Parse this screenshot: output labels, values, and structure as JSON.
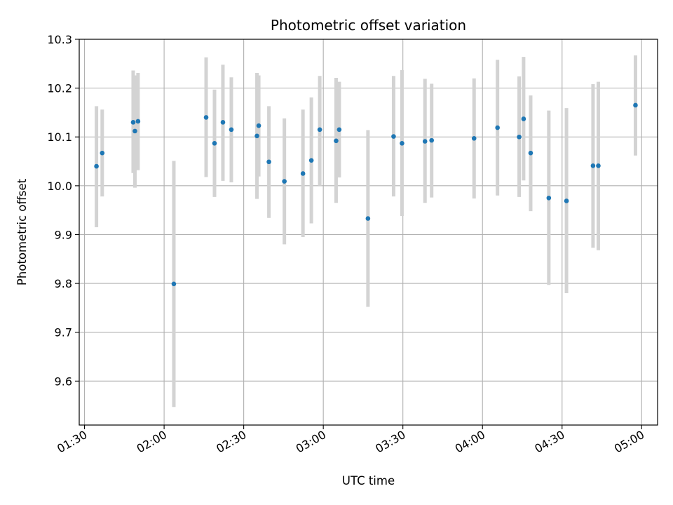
{
  "chart_data": {
    "type": "scatter",
    "title": "Photometric offset variation",
    "xlabel": "UTC time",
    "ylabel": "Photometric offset",
    "x_unit": "UTC HH:MM",
    "xlim": [
      "01:28",
      "05:06"
    ],
    "ylim": [
      9.51,
      10.3
    ],
    "x_ticks": [
      "01:30",
      "02:00",
      "02:30",
      "03:00",
      "03:30",
      "04:00",
      "04:30",
      "05:00"
    ],
    "y_ticks": [
      9.6,
      9.7,
      9.8,
      9.9,
      10.0,
      10.1,
      10.2,
      10.3
    ],
    "y_tick_labels": [
      "9.6",
      "9.7",
      "9.8",
      "9.9",
      "10.0",
      "10.1",
      "10.2",
      "10.3"
    ],
    "x_tick_rotation_deg": 30,
    "grid": true,
    "legend": "none",
    "colors": {
      "point": "#1f77b4",
      "errorbar": "#d3d3d3",
      "grid": "#b0b0b0"
    },
    "points": [
      {
        "x": "01:34:30",
        "y": 10.04,
        "yerr_low": 9.915,
        "yerr_high": 10.163
      },
      {
        "x": "01:36:40",
        "y": 10.067,
        "yerr_low": 9.978,
        "yerr_high": 10.156
      },
      {
        "x": "01:48:20",
        "y": 10.13,
        "yerr_low": 10.026,
        "yerr_high": 10.236
      },
      {
        "x": "01:49:00",
        "y": 10.112,
        "yerr_low": 9.996,
        "yerr_high": 10.226
      },
      {
        "x": "01:50:10",
        "y": 10.132,
        "yerr_low": 10.032,
        "yerr_high": 10.231
      },
      {
        "x": "02:03:40",
        "y": 9.799,
        "yerr_low": 9.547,
        "yerr_high": 10.051
      },
      {
        "x": "02:15:50",
        "y": 10.14,
        "yerr_low": 10.018,
        "yerr_high": 10.263
      },
      {
        "x": "02:19:00",
        "y": 10.087,
        "yerr_low": 9.977,
        "yerr_high": 10.197
      },
      {
        "x": "02:22:10",
        "y": 10.13,
        "yerr_low": 10.01,
        "yerr_high": 10.248
      },
      {
        "x": "02:25:20",
        "y": 10.115,
        "yerr_low": 10.007,
        "yerr_high": 10.222
      },
      {
        "x": "02:35:00",
        "y": 10.102,
        "yerr_low": 9.973,
        "yerr_high": 10.231
      },
      {
        "x": "02:35:40",
        "y": 10.123,
        "yerr_low": 10.019,
        "yerr_high": 10.226
      },
      {
        "x": "02:39:30",
        "y": 10.049,
        "yerr_low": 9.934,
        "yerr_high": 10.163
      },
      {
        "x": "02:45:20",
        "y": 10.009,
        "yerr_low": 9.88,
        "yerr_high": 10.138
      },
      {
        "x": "02:52:20",
        "y": 10.025,
        "yerr_low": 9.895,
        "yerr_high": 10.156
      },
      {
        "x": "02:55:30",
        "y": 10.052,
        "yerr_low": 9.923,
        "yerr_high": 10.181
      },
      {
        "x": "02:58:40",
        "y": 10.115,
        "yerr_low": 10.0,
        "yerr_high": 10.225
      },
      {
        "x": "03:04:50",
        "y": 10.092,
        "yerr_low": 9.965,
        "yerr_high": 10.221
      },
      {
        "x": "03:06:00",
        "y": 10.115,
        "yerr_low": 10.017,
        "yerr_high": 10.213
      },
      {
        "x": "03:16:50",
        "y": 9.933,
        "yerr_low": 9.752,
        "yerr_high": 10.114
      },
      {
        "x": "03:26:30",
        "y": 10.101,
        "yerr_low": 9.978,
        "yerr_high": 10.225
      },
      {
        "x": "03:29:40",
        "y": 10.087,
        "yerr_low": 9.938,
        "yerr_high": 10.237
      },
      {
        "x": "03:38:20",
        "y": 10.091,
        "yerr_low": 9.965,
        "yerr_high": 10.219
      },
      {
        "x": "03:40:50",
        "y": 10.093,
        "yerr_low": 9.976,
        "yerr_high": 10.209
      },
      {
        "x": "03:56:50",
        "y": 10.097,
        "yerr_low": 9.974,
        "yerr_high": 10.22
      },
      {
        "x": "04:05:40",
        "y": 10.119,
        "yerr_low": 9.98,
        "yerr_high": 10.258
      },
      {
        "x": "04:13:50",
        "y": 10.1,
        "yerr_low": 9.977,
        "yerr_high": 10.224
      },
      {
        "x": "04:15:30",
        "y": 10.137,
        "yerr_low": 10.011,
        "yerr_high": 10.264
      },
      {
        "x": "04:18:10",
        "y": 10.067,
        "yerr_low": 9.948,
        "yerr_high": 10.185
      },
      {
        "x": "04:25:00",
        "y": 9.975,
        "yerr_low": 9.797,
        "yerr_high": 10.154
      },
      {
        "x": "04:31:40",
        "y": 9.969,
        "yerr_low": 9.78,
        "yerr_high": 10.159
      },
      {
        "x": "04:41:40",
        "y": 10.041,
        "yerr_low": 9.873,
        "yerr_high": 10.208
      },
      {
        "x": "04:43:40",
        "y": 10.041,
        "yerr_low": 9.868,
        "yerr_high": 10.213
      },
      {
        "x": "04:57:40",
        "y": 10.165,
        "yerr_low": 10.062,
        "yerr_high": 10.267
      }
    ]
  }
}
